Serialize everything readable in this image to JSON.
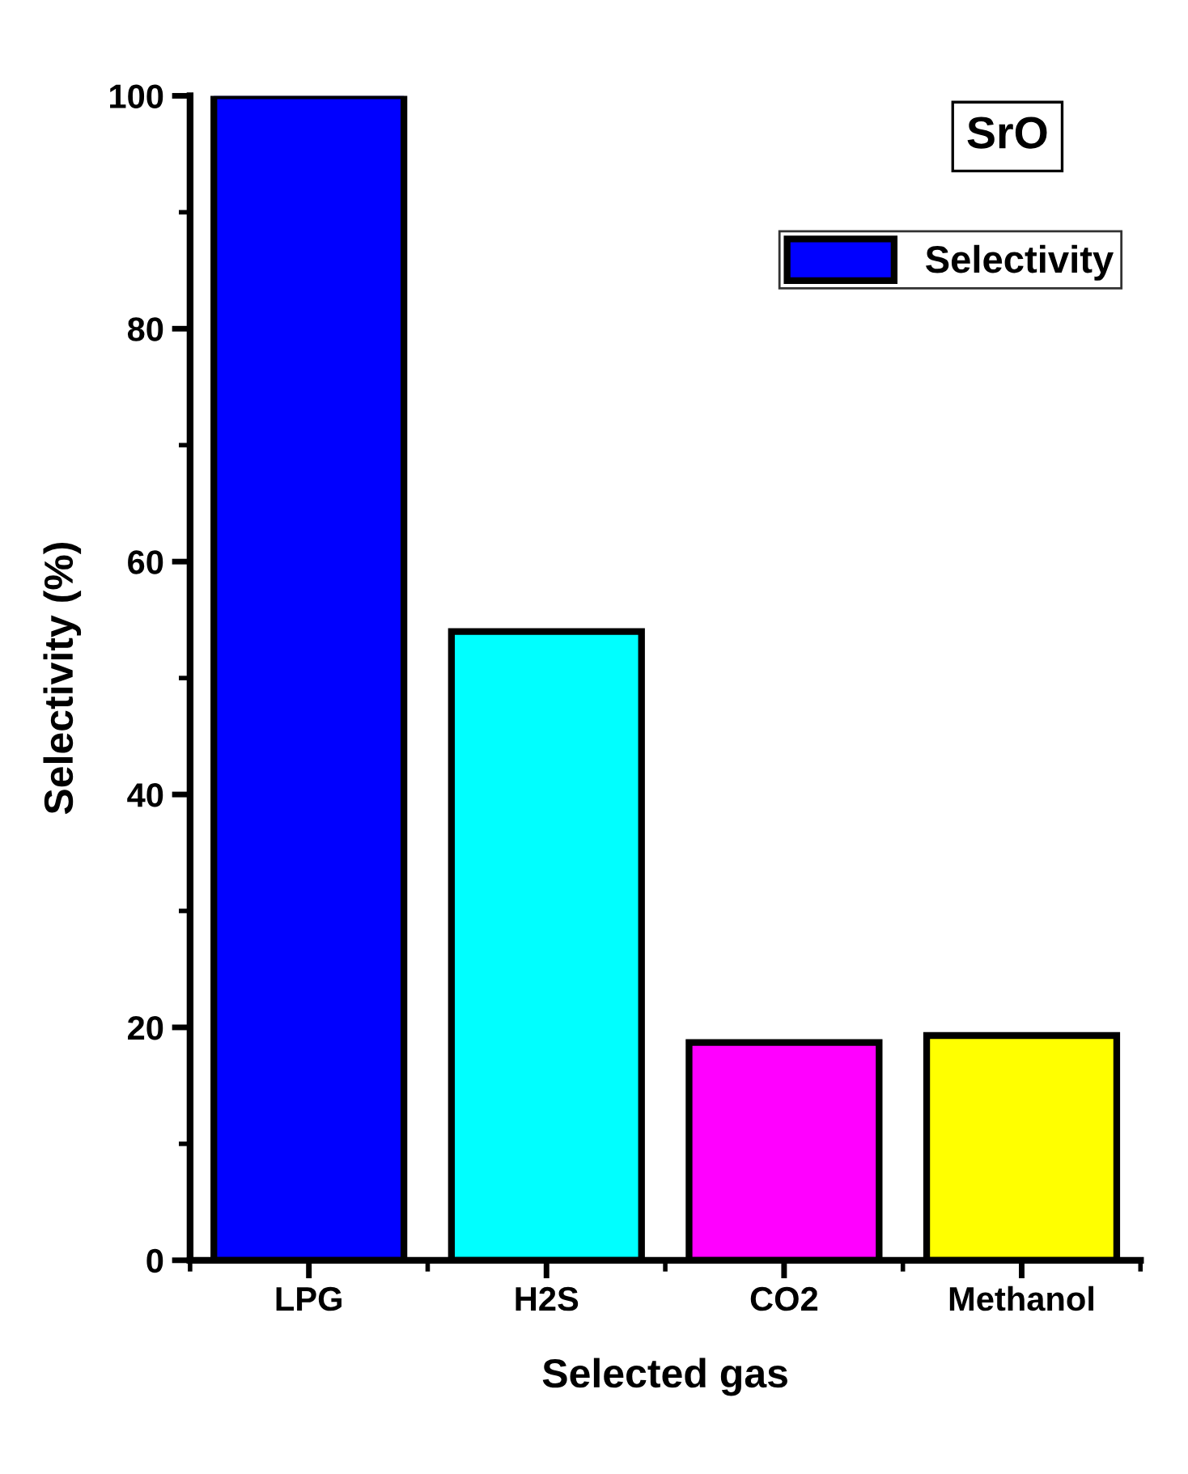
{
  "chart_data": {
    "type": "bar",
    "categories": [
      "LPG",
      "H2S",
      "CO2",
      "Methanol"
    ],
    "series": [
      {
        "name": "Selectivity",
        "colors": [
          "#0000ff",
          "#00ffff",
          "#ff00ff",
          "#ffff00"
        ],
        "values": [
          100,
          54.0,
          18.7,
          19.3
        ]
      }
    ],
    "xlabel": "Selected gas",
    "ylabel": "Selectivity (%)",
    "ylim": [
      0,
      100
    ],
    "yticks": [
      0,
      20,
      40,
      60,
      80,
      100
    ],
    "annotations": [
      "SrO"
    ],
    "legend": "top right",
    "grid": false
  }
}
